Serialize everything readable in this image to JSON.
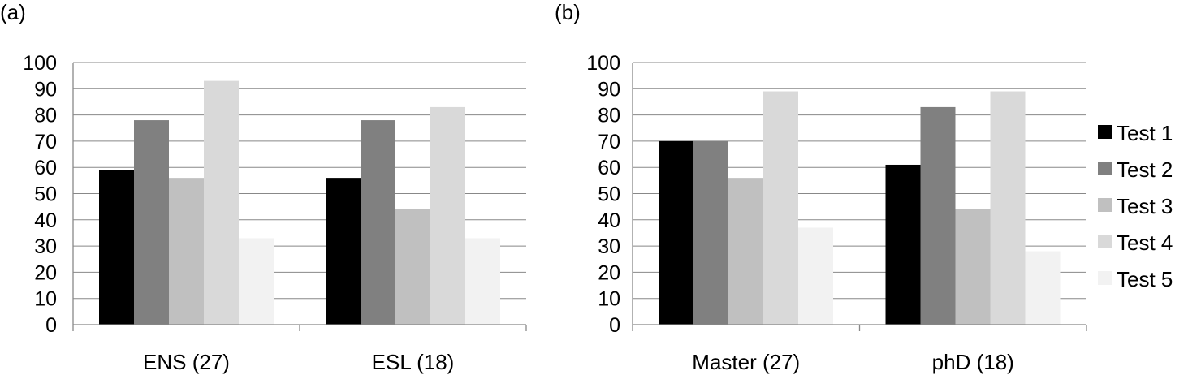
{
  "chart_data": [
    {
      "type": "bar",
      "panel_label": "(a)",
      "categories": [
        "ENS (27)",
        "ESL (18)"
      ],
      "series": [
        {
          "name": "Test 1",
          "color": "#000000",
          "values": [
            59,
            56
          ]
        },
        {
          "name": "Test 2",
          "color": "#808080",
          "values": [
            78,
            78
          ]
        },
        {
          "name": "Test 3",
          "color": "#c0c0c0",
          "values": [
            56,
            44
          ]
        },
        {
          "name": "Test 4",
          "color": "#d9d9d9",
          "values": [
            93,
            83
          ]
        },
        {
          "name": "Test 5",
          "color": "#f2f2f2",
          "values": [
            33,
            33
          ]
        }
      ],
      "ylim": [
        0,
        100
      ],
      "yticks": [
        "0",
        "10",
        "20",
        "30",
        "40",
        "50",
        "60",
        "70",
        "80",
        "90",
        "100"
      ],
      "grid": true,
      "legend": false
    },
    {
      "type": "bar",
      "panel_label": "(b)",
      "categories": [
        "Master (27)",
        "phD (18)"
      ],
      "series": [
        {
          "name": "Test 1",
          "color": "#000000",
          "values": [
            70,
            61
          ]
        },
        {
          "name": "Test 2",
          "color": "#808080",
          "values": [
            70,
            83
          ]
        },
        {
          "name": "Test 3",
          "color": "#c0c0c0",
          "values": [
            56,
            44
          ]
        },
        {
          "name": "Test 4",
          "color": "#d9d9d9",
          "values": [
            89,
            89
          ]
        },
        {
          "name": "Test 5",
          "color": "#f2f2f2",
          "values": [
            37,
            28
          ]
        }
      ],
      "ylim": [
        0,
        100
      ],
      "yticks": [
        "0",
        "10",
        "20",
        "30",
        "40",
        "50",
        "60",
        "70",
        "80",
        "90",
        "100"
      ],
      "grid": true,
      "legend": true,
      "legend_position": "right"
    }
  ]
}
